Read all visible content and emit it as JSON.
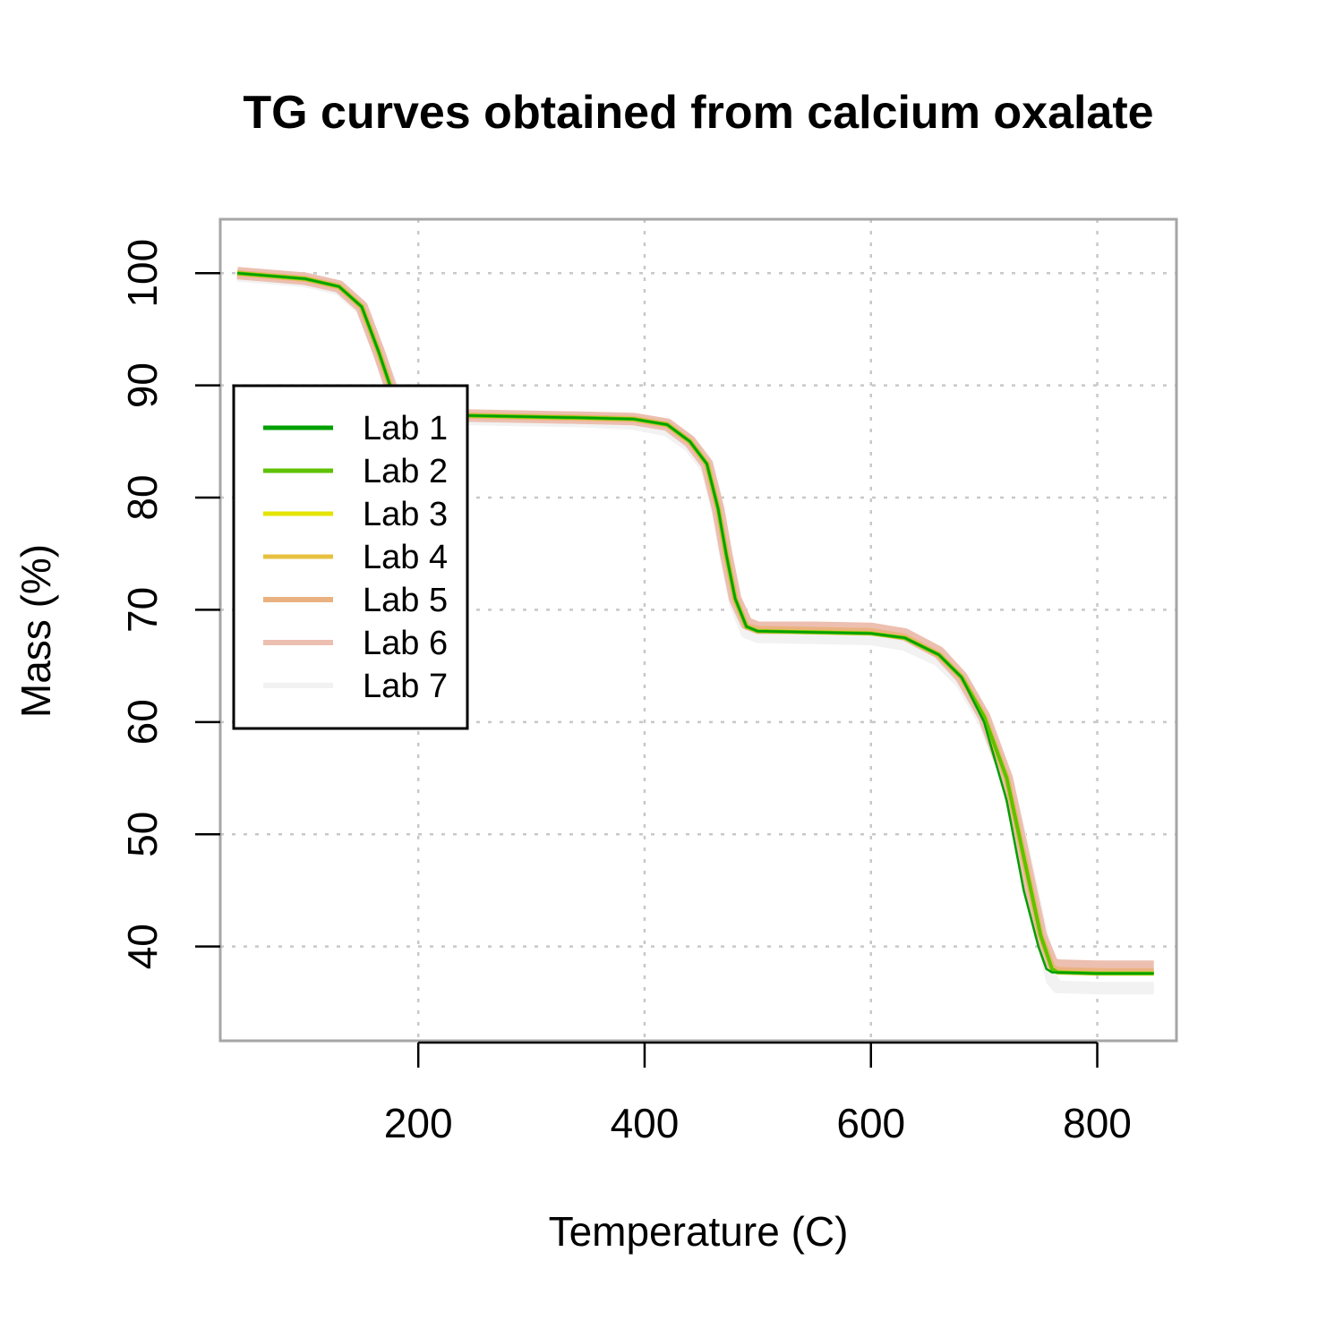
{
  "chart_data": {
    "type": "line",
    "title": "TG curves obtained from calcium oxalate",
    "xlabel": "Temperature (C)",
    "ylabel": "Mass (%)",
    "xlim": [
      25,
      870
    ],
    "ylim": [
      31.6,
      104.8
    ],
    "x_ticks": [
      200,
      400,
      600,
      800
    ],
    "x_tick_labels": [
      "200",
      "400",
      "600",
      "800"
    ],
    "y_ticks": [
      40,
      50,
      60,
      70,
      80,
      90,
      100
    ],
    "y_tick_labels": [
      "40",
      "50",
      "60",
      "70",
      "80",
      "90",
      "100"
    ],
    "grid": true,
    "legend_position": "top-left",
    "series": [
      {
        "name": "Lab 1",
        "color": "#00a000",
        "x": [
          40,
          100,
          130,
          150,
          165,
          175,
          185,
          192,
          200,
          250,
          300,
          350,
          390,
          420,
          440,
          455,
          465,
          472,
          480,
          490,
          500,
          550,
          600,
          630,
          660,
          680,
          700,
          720,
          735,
          748,
          755,
          760,
          800,
          850
        ],
        "y": [
          100.0,
          99.5,
          98.8,
          97.0,
          93.0,
          90.0,
          88.0,
          87.5,
          87.4,
          87.3,
          87.2,
          87.1,
          87.0,
          86.5,
          85.0,
          83.0,
          79.0,
          75.0,
          71.0,
          68.5,
          68.1,
          68.0,
          67.9,
          67.5,
          66.0,
          64.0,
          60.0,
          53.0,
          45.0,
          40.0,
          38.0,
          37.7,
          37.6,
          37.6
        ]
      },
      {
        "name": "Lab 2",
        "color": "#5ec100",
        "x": [
          40,
          100,
          130,
          150,
          165,
          175,
          185,
          192,
          200,
          250,
          300,
          350,
          390,
          420,
          440,
          455,
          465,
          472,
          480,
          490,
          500,
          550,
          600,
          630,
          660,
          680,
          700,
          720,
          735,
          750,
          760,
          765,
          800,
          850
        ],
        "y": [
          100.0,
          99.5,
          98.8,
          97.0,
          93.0,
          90.0,
          88.0,
          87.5,
          87.4,
          87.3,
          87.2,
          87.1,
          87.0,
          86.5,
          85.0,
          83.0,
          79.0,
          75.0,
          71.0,
          68.5,
          68.1,
          68.0,
          67.9,
          67.5,
          66.0,
          64.0,
          60.5,
          55.0,
          48.0,
          41.0,
          38.0,
          37.7,
          37.6,
          37.6
        ]
      },
      {
        "name": "Lab 3",
        "color": "#e4e400",
        "x": [
          40,
          100,
          130,
          150,
          165,
          175,
          185,
          192,
          200,
          250,
          300,
          350,
          390,
          420,
          440,
          455,
          465,
          472,
          480,
          490,
          500,
          550,
          600,
          630,
          660,
          680,
          700,
          720,
          735,
          750,
          760,
          765,
          800,
          850
        ],
        "y": [
          100.0,
          99.5,
          98.8,
          97.0,
          93.0,
          90.0,
          88.0,
          87.5,
          87.4,
          87.3,
          87.2,
          87.1,
          87.0,
          86.5,
          85.0,
          83.0,
          79.0,
          75.0,
          71.0,
          68.5,
          68.1,
          68.0,
          67.9,
          67.5,
          66.0,
          64.0,
          60.5,
          55.0,
          48.0,
          41.0,
          38.0,
          37.7,
          37.6,
          37.6
        ]
      },
      {
        "name": "Lab 4",
        "color": "#e8c040",
        "x": [
          40,
          100,
          130,
          150,
          165,
          175,
          185,
          192,
          200,
          250,
          300,
          350,
          390,
          420,
          440,
          455,
          465,
          472,
          480,
          490,
          500,
          550,
          600,
          630,
          660,
          680,
          700,
          720,
          735,
          750,
          760,
          765,
          800,
          850
        ],
        "y": [
          100.0,
          99.5,
          98.8,
          97.0,
          93.0,
          90.0,
          88.0,
          87.5,
          87.4,
          87.3,
          87.2,
          87.1,
          87.0,
          86.5,
          85.0,
          83.0,
          79.0,
          75.0,
          71.0,
          68.5,
          68.1,
          68.0,
          67.9,
          67.5,
          66.0,
          64.0,
          60.5,
          55.0,
          48.0,
          41.0,
          38.0,
          37.7,
          37.6,
          37.6
        ]
      },
      {
        "name": "Lab 5",
        "color": "#eab281",
        "x": [
          40,
          100,
          130,
          150,
          165,
          175,
          185,
          192,
          200,
          250,
          300,
          350,
          390,
          420,
          440,
          455,
          465,
          472,
          480,
          490,
          500,
          550,
          600,
          630,
          660,
          680,
          700,
          720,
          735,
          750,
          760,
          765,
          800,
          850
        ],
        "y": [
          100.0,
          99.5,
          98.8,
          97.0,
          93.0,
          90.0,
          88.0,
          87.5,
          87.4,
          87.3,
          87.2,
          87.1,
          87.0,
          86.5,
          85.0,
          83.0,
          79.0,
          75.0,
          71.0,
          68.5,
          68.3,
          68.2,
          68.1,
          67.6,
          66.0,
          64.0,
          60.5,
          55.0,
          48.0,
          41.0,
          38.2,
          37.9,
          37.8,
          37.8
        ]
      },
      {
        "name": "Lab 6",
        "color": "#ecbfb0",
        "x": [
          40,
          100,
          130,
          150,
          165,
          175,
          185,
          192,
          200,
          250,
          300,
          350,
          390,
          420,
          440,
          455,
          465,
          472,
          480,
          490,
          500,
          550,
          600,
          630,
          660,
          680,
          700,
          720,
          735,
          750,
          760,
          765,
          800,
          850
        ],
        "y": [
          100.0,
          99.5,
          98.8,
          97.0,
          93.0,
          90.0,
          88.0,
          87.5,
          87.4,
          87.3,
          87.2,
          87.1,
          87.0,
          86.5,
          85.0,
          83.0,
          79.0,
          75.0,
          71.0,
          68.8,
          68.4,
          68.4,
          68.3,
          67.8,
          66.2,
          64.0,
          60.5,
          55.0,
          48.0,
          41.0,
          38.5,
          38.3,
          38.2,
          38.2
        ]
      },
      {
        "name": "Lab 7",
        "color": "#f2f2f2",
        "x": [
          40,
          100,
          130,
          150,
          165,
          175,
          185,
          192,
          200,
          250,
          300,
          350,
          390,
          420,
          440,
          455,
          465,
          472,
          480,
          490,
          500,
          550,
          600,
          630,
          660,
          680,
          700,
          720,
          735,
          750,
          760,
          765,
          800,
          850
        ],
        "y": [
          99.8,
          99.3,
          98.6,
          96.8,
          93.0,
          90.3,
          88.2,
          87.3,
          87.1,
          87.0,
          86.9,
          86.8,
          86.6,
          86.0,
          84.6,
          82.6,
          78.6,
          74.6,
          70.6,
          68.0,
          67.6,
          67.5,
          67.4,
          66.9,
          65.5,
          63.5,
          60.0,
          55.0,
          48.5,
          41.5,
          37.0,
          36.4,
          36.3,
          36.3
        ]
      }
    ]
  }
}
